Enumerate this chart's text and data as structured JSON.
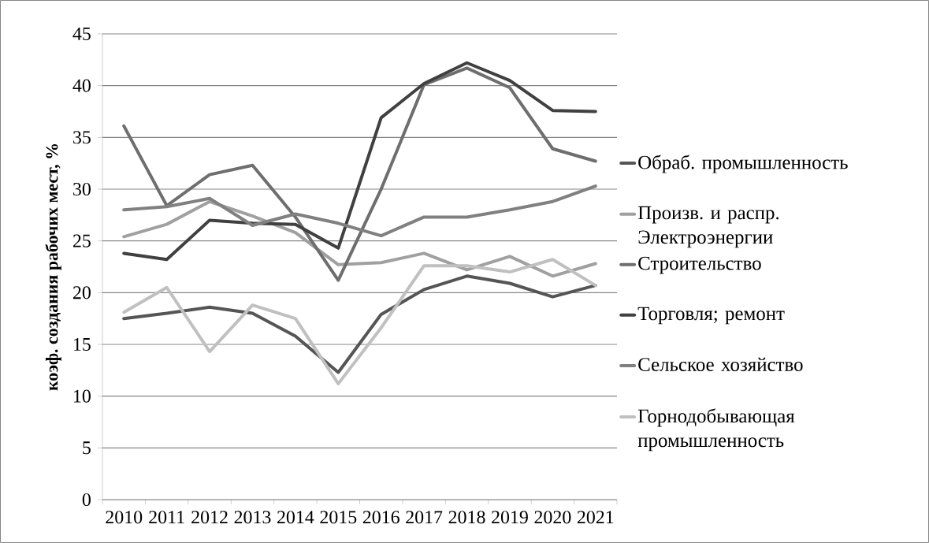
{
  "chart_data": {
    "type": "line",
    "ylabel": "коэф. создания рабочих мест, %",
    "categories": [
      "2010",
      "2011",
      "2012",
      "2013",
      "2014",
      "2015",
      "2016",
      "2017",
      "2018",
      "2019",
      "2020",
      "2021"
    ],
    "series": [
      {
        "name": "Обраб. промышленность",
        "color": "#555555",
        "values": [
          17.5,
          18,
          18.6,
          18,
          15.8,
          12.3,
          17.9,
          20.3,
          21.6,
          20.9,
          19.6,
          20.7
        ]
      },
      {
        "name": "Произв. и распр. Электроэнергии",
        "color": "#a0a0a0",
        "values": [
          25.4,
          26.6,
          28.8,
          27.4,
          25.8,
          22.7,
          22.9,
          23.8,
          22.2,
          23.5,
          21.6,
          22.8
        ]
      },
      {
        "name": "Строительство",
        "color": "#6e6e6e",
        "values": [
          36.1,
          28.4,
          31.4,
          32.3,
          27.3,
          21.2,
          30,
          40.1,
          41.7,
          39.8,
          33.9,
          32.7
        ]
      },
      {
        "name": "Торговля; ремонт",
        "color": "#404040",
        "values": [
          23.8,
          23.2,
          27,
          26.7,
          26.6,
          24.3,
          36.9,
          40.2,
          42.2,
          40.5,
          37.6,
          37.5
        ]
      },
      {
        "name": "Сельское хозяйство",
        "color": "#808080",
        "values": [
          28,
          28.3,
          29.1,
          26.5,
          27.6,
          26.7,
          25.5,
          27.3,
          27.3,
          28,
          28.8,
          30.3
        ]
      },
      {
        "name": "Горнодобывающая промышленность",
        "color": "#c0c0c0",
        "values": [
          18.1,
          20.5,
          14.3,
          18.8,
          17.5,
          11.2,
          16.6,
          22.6,
          22.6,
          22,
          23.2,
          20.7
        ]
      }
    ],
    "ylim": [
      0,
      45
    ],
    "yticks": [
      0,
      5,
      10,
      15,
      20,
      25,
      30,
      35,
      40,
      45
    ],
    "grid": "y",
    "legend": "right",
    "marker": "none",
    "line_style": "solid"
  }
}
